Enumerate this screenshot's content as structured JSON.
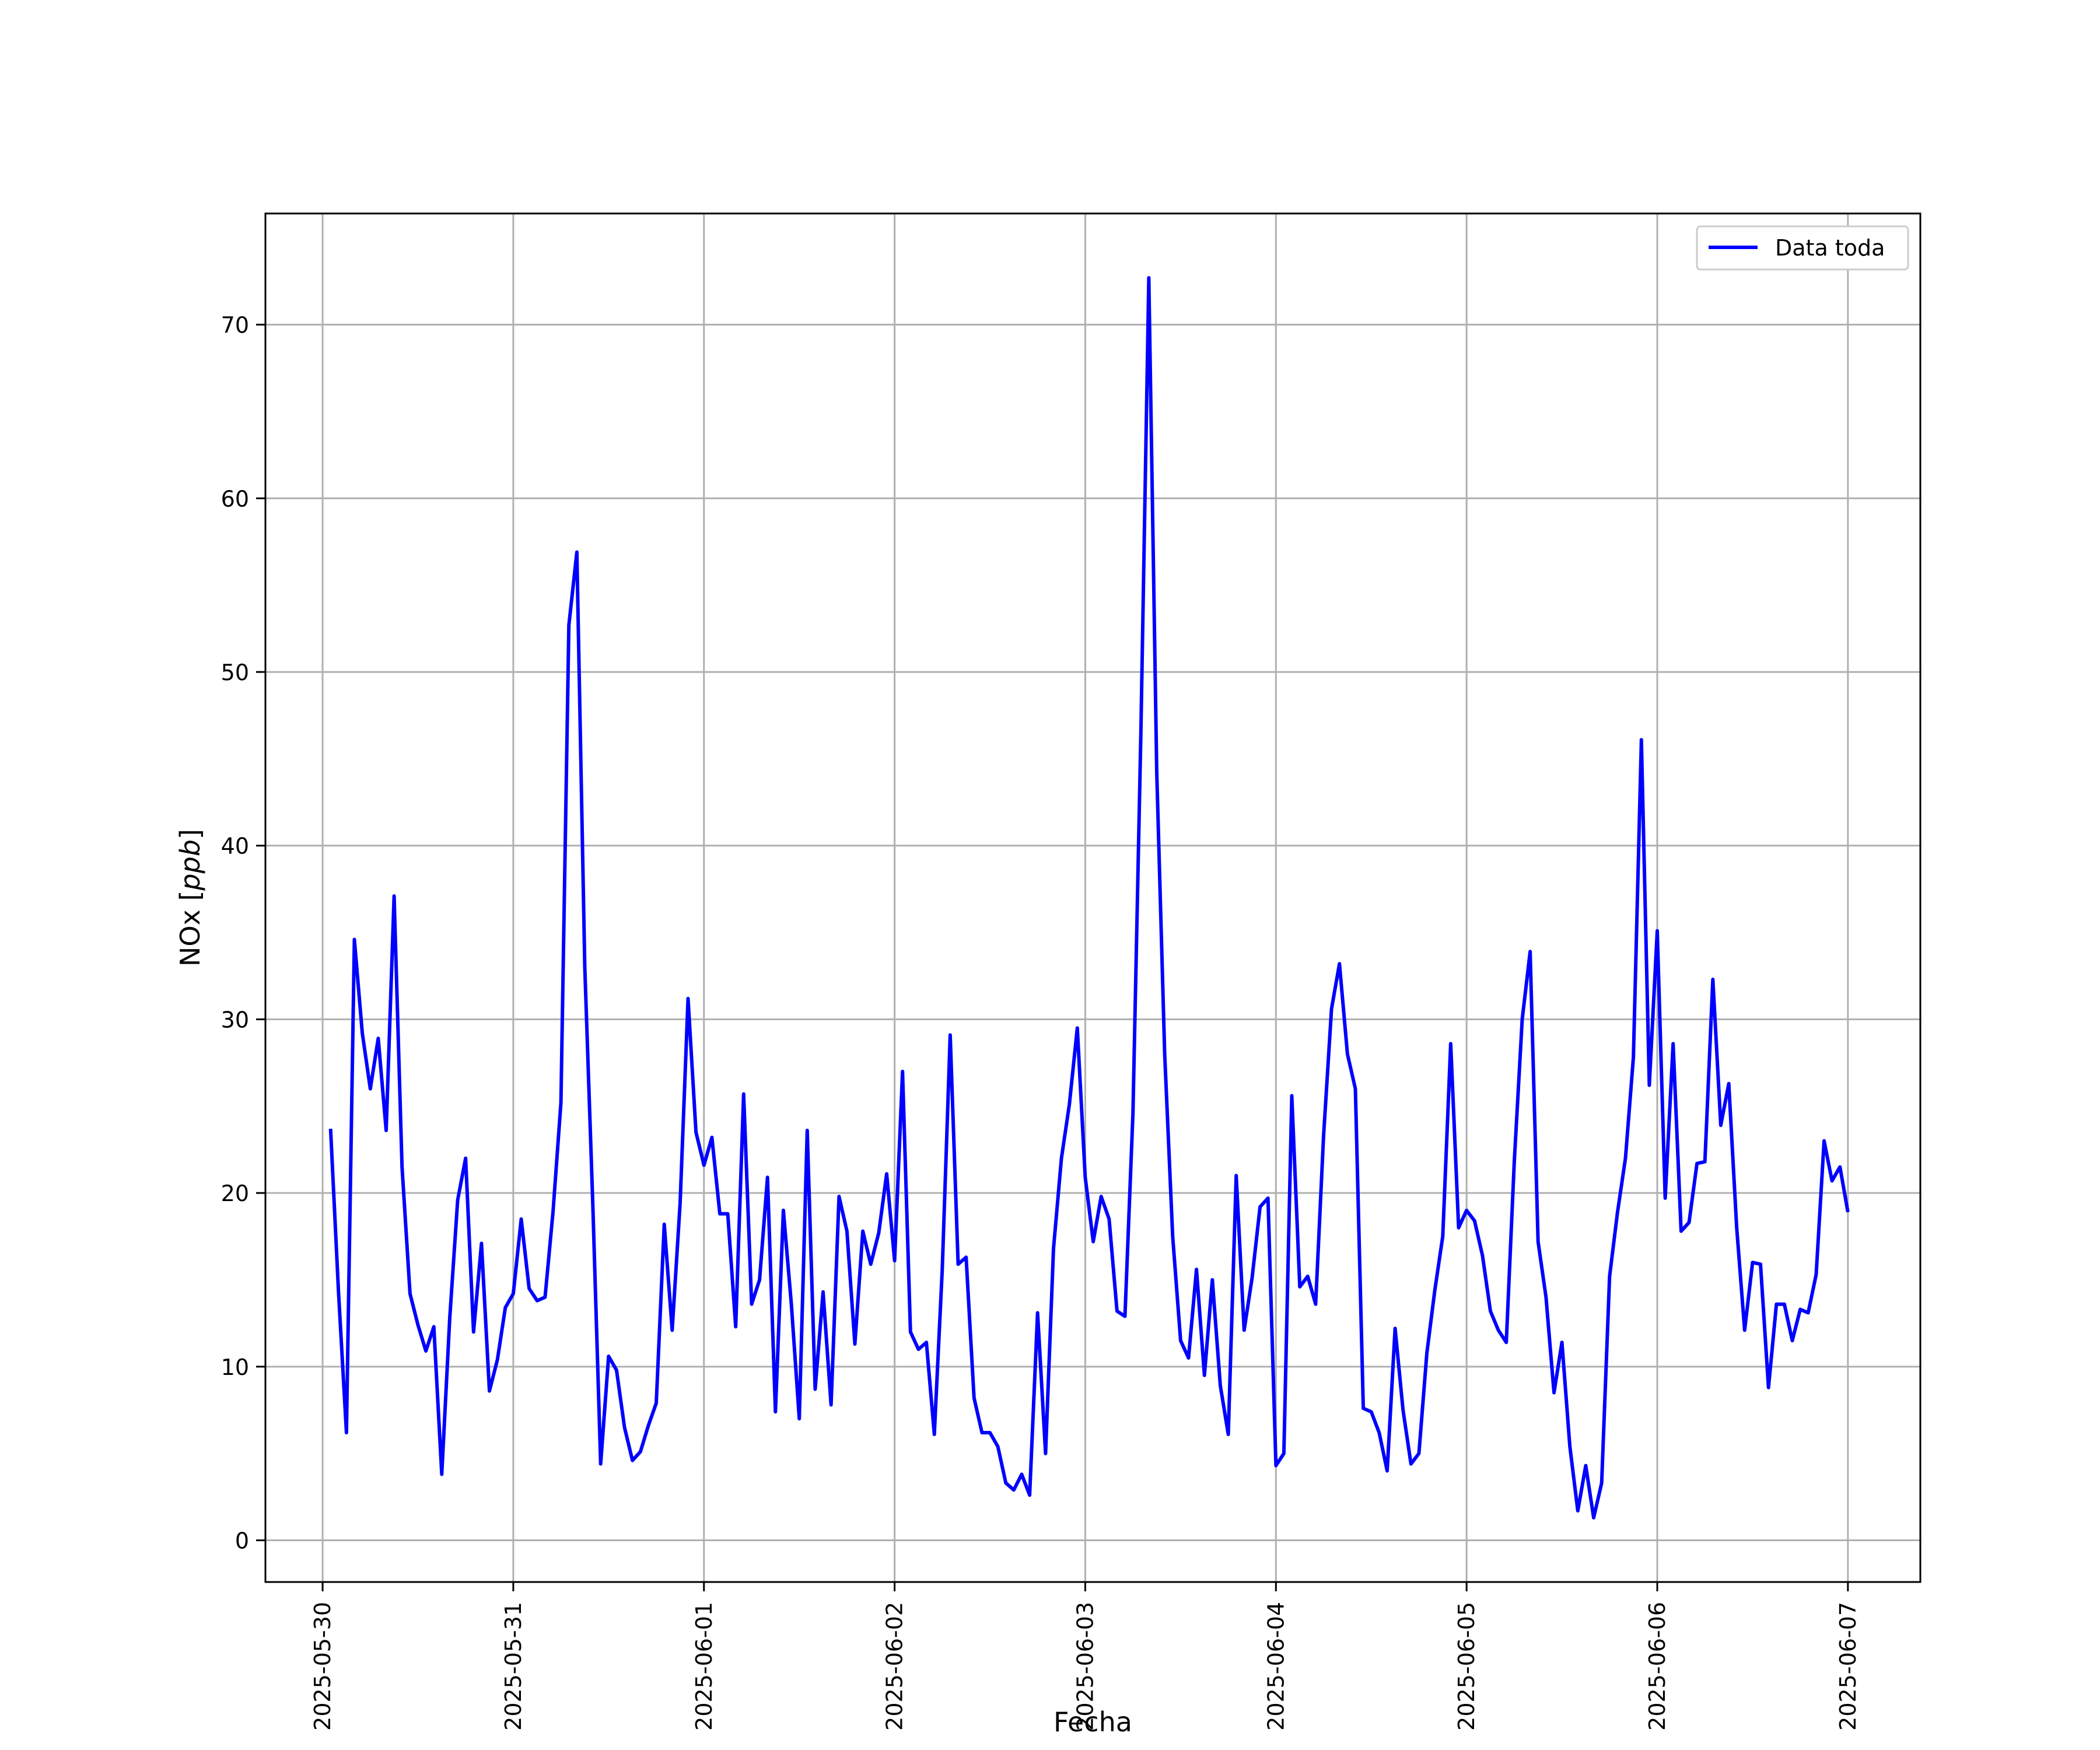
{
  "chart_data": {
    "type": "line",
    "xlabel": "Fecha",
    "ylabel_main": "NOx",
    "ylabel_unit": "ppb",
    "ylim": [
      -2.4,
      76.4
    ],
    "xlim": [
      "2025-05-29T16:48",
      "2025-06-07T09:07"
    ],
    "x_ticks": [
      "2025-05-30",
      "2025-05-31",
      "2025-06-01",
      "2025-06-02",
      "2025-06-03",
      "2025-06-04",
      "2025-06-05",
      "2025-06-06",
      "2025-06-07"
    ],
    "y_ticks": [
      0,
      10,
      20,
      30,
      40,
      50,
      60,
      70
    ],
    "grid": true,
    "legend": "top-right",
    "colors": {
      "series": "#0000ff"
    },
    "series": [
      {
        "name": "Data toda",
        "x_start": "2025-05-30T01:00",
        "x_step_hours": 1,
        "y": [
          23.7,
          14.3,
          6.2,
          34.6,
          29.2,
          26.0,
          28.9,
          23.6,
          37.1,
          21.5,
          14.2,
          12.4,
          10.9,
          12.3,
          3.8,
          12.8,
          19.6,
          22.0,
          12.0,
          17.1,
          8.6,
          10.4,
          13.4,
          14.2,
          18.5,
          14.5,
          13.8,
          14.0,
          18.9,
          25.2,
          52.7,
          56.9,
          33.0,
          19.5,
          4.4,
          10.6,
          9.8,
          6.5,
          4.6,
          5.1,
          6.6,
          7.9,
          18.2,
          12.1,
          19.4,
          31.2,
          23.5,
          21.6,
          23.2,
          18.8,
          18.8,
          12.3,
          25.7,
          13.6,
          15.0,
          20.9,
          7.4,
          19.0,
          13.6,
          7.0,
          23.6,
          8.7,
          14.3,
          7.8,
          19.8,
          17.8,
          11.3,
          17.8,
          15.9,
          17.7,
          21.1,
          16.1,
          27.0,
          12.0,
          11.0,
          11.4,
          6.1,
          15.6,
          29.1,
          15.9,
          16.3,
          8.2,
          6.2,
          6.2,
          5.4,
          3.3,
          2.9,
          3.8,
          2.6,
          13.1,
          5.0,
          16.8,
          22.0,
          25.1,
          29.5,
          20.9,
          17.2,
          19.8,
          18.5,
          13.2,
          12.9,
          24.6,
          46.5,
          72.7,
          44.2,
          28.0,
          17.5,
          11.5,
          10.5,
          15.6,
          9.5,
          15.0,
          8.9,
          6.1,
          21.0,
          12.1,
          15.1,
          19.2,
          19.7,
          4.3,
          5.0,
          25.6,
          14.6,
          15.2,
          13.6,
          23.3,
          30.6,
          33.2,
          28.0,
          26.0,
          7.6,
          7.4,
          6.2,
          4.0,
          12.2,
          7.5,
          4.4,
          5.0,
          10.8,
          14.4,
          17.5,
          28.6,
          18.0,
          19.0,
          18.4,
          16.4,
          13.2,
          12.1,
          11.4,
          21.8,
          30.0,
          33.9,
          17.2,
          14.0,
          8.5,
          11.4,
          5.4,
          1.7,
          4.3,
          1.3,
          3.3,
          15.2,
          18.9,
          22.0,
          27.8,
          46.1,
          26.2,
          35.1,
          19.7,
          28.6,
          17.8,
          18.3,
          21.7,
          21.8,
          32.3,
          23.9,
          26.3,
          18.0,
          12.1,
          16.0,
          15.9,
          8.8,
          13.6,
          13.6,
          11.5,
          13.3,
          13.1,
          15.3,
          23.0,
          20.7,
          21.5,
          18.9
        ]
      }
    ]
  }
}
